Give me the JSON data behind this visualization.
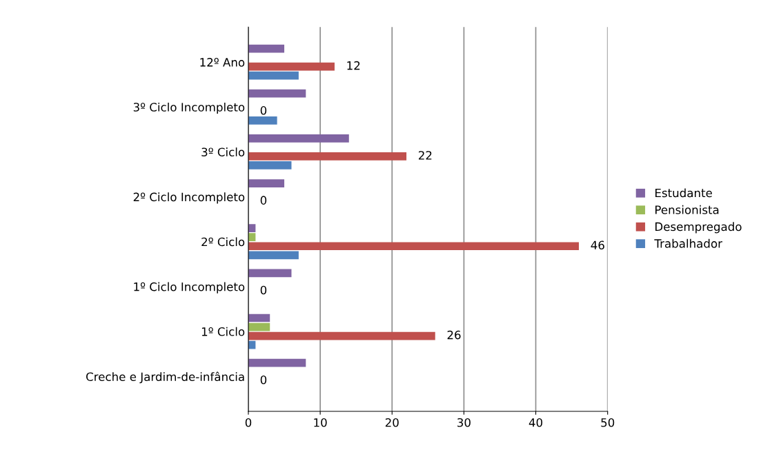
{
  "chart_data": {
    "type": "bar",
    "orientation": "horizontal",
    "categories": [
      "12º Ano",
      "3º Ciclo Incompleto",
      "3º Ciclo",
      "2º Ciclo Incompleto",
      "2º Ciclo",
      "1º Ciclo Incompleto",
      "1º Ciclo",
      "Creche e Jardim-de-infância"
    ],
    "series": [
      {
        "name": "Trabalhador",
        "color": "#4f81bd",
        "values": [
          7,
          4,
          6,
          0,
          7,
          0,
          1,
          0
        ]
      },
      {
        "name": "Desempregado",
        "color": "#c0504d",
        "values": [
          12,
          0,
          22,
          0,
          46,
          0,
          26,
          0
        ],
        "value_labels": [
          "12",
          "0",
          "22",
          "0",
          "46",
          "0",
          "26",
          "0"
        ]
      },
      {
        "name": "Pensionista",
        "color": "#9bbb59",
        "values": [
          0,
          0,
          0,
          0,
          1,
          0,
          3,
          0
        ]
      },
      {
        "name": "Estudante",
        "color": "#8064a2",
        "values": [
          5,
          8,
          14,
          5,
          1,
          6,
          3,
          8
        ]
      }
    ],
    "xlim": [
      0,
      50
    ],
    "xticks": [
      0,
      10,
      20,
      30,
      40,
      50
    ],
    "grid": "x",
    "legend": "right"
  }
}
